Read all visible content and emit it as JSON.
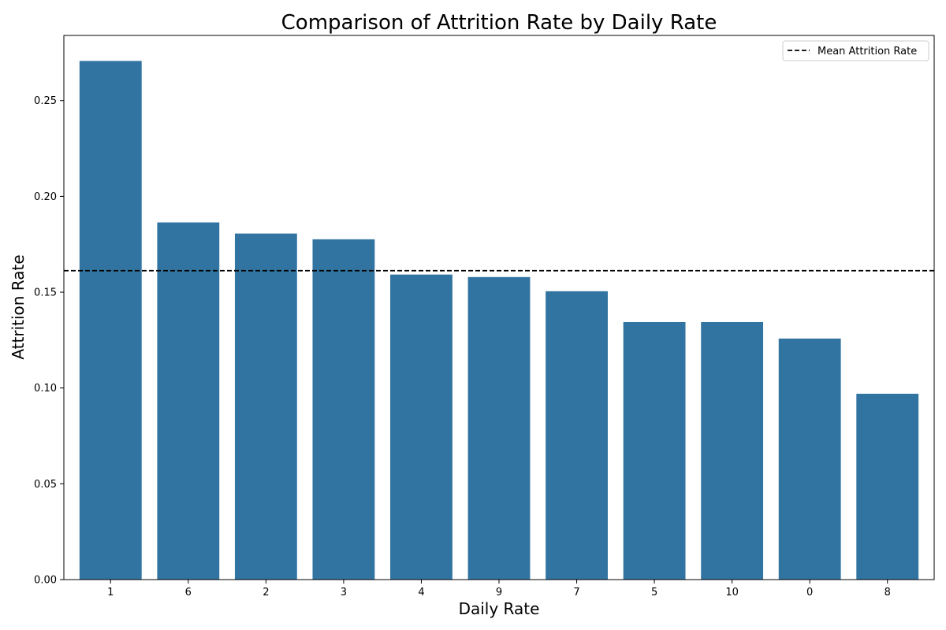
{
  "chart_data": {
    "type": "bar",
    "title": "Comparison of Attrition Rate by Daily Rate",
    "xlabel": "Daily Rate",
    "ylabel": "Attrition Rate",
    "categories": [
      "1",
      "6",
      "2",
      "3",
      "4",
      "9",
      "7",
      "5",
      "10",
      "0",
      "8"
    ],
    "values": [
      0.2707,
      0.1864,
      0.1806,
      0.1776,
      0.1592,
      0.1579,
      0.1505,
      0.1344,
      0.1344,
      0.1258,
      0.097
    ],
    "ylim": [
      0,
      0.284
    ],
    "yticks": [
      "0.00",
      "0.05",
      "0.10",
      "0.15",
      "0.20",
      "0.25"
    ],
    "mean_line": {
      "label": "Mean Attrition Rate",
      "value": 0.1612,
      "style": "dashed",
      "color": "#000000"
    },
    "bar_color": "#3274a1",
    "grid": false,
    "legend_position": "top-right"
  }
}
